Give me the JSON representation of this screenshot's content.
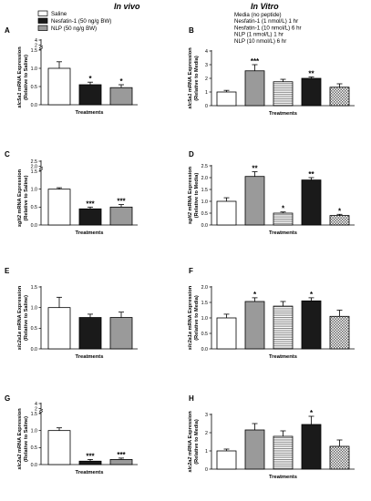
{
  "headers": {
    "left": "In vivo",
    "right": "In Vitro"
  },
  "legend_left": [
    "Saline",
    "Nesfatin-1 (50 ng/g BW)",
    "NLP (50 ng/g BW)"
  ],
  "legend_right": [
    "Media (no peptide)",
    "Nesfatin-1 (1 nmol/L) 1 hr",
    "Nesfatin-1 (10 nmol/L) 6 hr",
    "NLP (1 nmol/L) 1 hr",
    "NLP (10 nmol/L) 6 hr"
  ],
  "chart_data": [
    {
      "id": "A",
      "type": "bar",
      "gene": "slc5a1",
      "ylabel_suffix": " mRNA Expression",
      "ylabel2": "(Relative to Saline)",
      "xlabel": "Treatments",
      "ylim": [
        0,
        1.5
      ],
      "yticks": [
        "0.0",
        "0.5",
        "1.0",
        "1.5"
      ],
      "break_labels": [
        "4",
        "2"
      ],
      "values": [
        1.0,
        0.55,
        0.47
      ],
      "errors": [
        0.18,
        0.07,
        0.08
      ],
      "stars": [
        "",
        "*",
        "*"
      ],
      "fills": [
        "white",
        "black",
        "gray"
      ]
    },
    {
      "id": "B",
      "type": "bar",
      "gene": "slc5a1",
      "ylabel_suffix": " mRNA Expression",
      "ylabel2": "(Relative to Media)",
      "xlabel": "Treatments",
      "ylim": [
        0,
        4
      ],
      "yticks": [
        "0",
        "1",
        "2",
        "3",
        "4"
      ],
      "values": [
        1.0,
        2.55,
        1.75,
        2.0,
        1.35
      ],
      "errors": [
        0.12,
        0.45,
        0.18,
        0.1,
        0.25
      ],
      "stars": [
        "",
        "***",
        "",
        "**",
        ""
      ],
      "fills": [
        "white",
        "gray",
        "hstripe",
        "black",
        "checker"
      ]
    },
    {
      "id": "C",
      "type": "bar",
      "gene": "sglt2",
      "ylabel_suffix": " mRNA Expression",
      "ylabel2": "(Relative to Saline)",
      "xlabel": "Treatments",
      "ylim": [
        0,
        1.5
      ],
      "yticks": [
        "0.0",
        "0.5",
        "1.0",
        "1.5"
      ],
      "break_labels": [
        "2.5",
        "2.0"
      ],
      "values": [
        1.0,
        0.45,
        0.5
      ],
      "errors": [
        0.04,
        0.05,
        0.07
      ],
      "stars": [
        "",
        "***",
        "***"
      ],
      "fills": [
        "white",
        "black",
        "gray"
      ]
    },
    {
      "id": "D",
      "type": "bar",
      "gene": "sglt2",
      "ylabel_suffix": " mRNA Expression",
      "ylabel2": "(Relative to Media)",
      "xlabel": "Treatments",
      "ylim": [
        0,
        2.5
      ],
      "yticks": [
        "0.0",
        "0.5",
        "1.0",
        "1.5",
        "2.0",
        "2.5"
      ],
      "values": [
        1.0,
        2.05,
        0.5,
        1.9,
        0.4
      ],
      "errors": [
        0.15,
        0.2,
        0.05,
        0.1,
        0.05
      ],
      "stars": [
        "",
        "**",
        "*",
        "**",
        "*"
      ],
      "fills": [
        "white",
        "gray",
        "hstripe",
        "black",
        "checker"
      ]
    },
    {
      "id": "E",
      "type": "bar",
      "gene": "slc2a1a",
      "ylabel_suffix": " mRNA Expression",
      "ylabel2": "(Relative to Saline)",
      "xlabel": "Treatments",
      "ylim": [
        0,
        1.5
      ],
      "yticks": [
        "0.0",
        "0.5",
        "1.0",
        "1.5"
      ],
      "values": [
        1.0,
        0.76,
        0.76
      ],
      "errors": [
        0.25,
        0.08,
        0.13
      ],
      "stars": [
        "",
        "",
        ""
      ],
      "fills": [
        "white",
        "black",
        "gray"
      ]
    },
    {
      "id": "F",
      "type": "bar",
      "gene": "slc2a1a",
      "ylabel_suffix": " mRNA Expression",
      "ylabel2": "(Relative to Media)",
      "xlabel": "Treatments",
      "ylim": [
        0,
        2.0
      ],
      "yticks": [
        "0.0",
        "0.5",
        "1.0",
        "1.5",
        "2.0"
      ],
      "values": [
        1.0,
        1.53,
        1.38,
        1.55,
        1.05
      ],
      "errors": [
        0.12,
        0.12,
        0.15,
        0.1,
        0.2
      ],
      "stars": [
        "",
        "*",
        "",
        "*",
        ""
      ],
      "fills": [
        "white",
        "gray",
        "hstripe",
        "black",
        "checker"
      ]
    },
    {
      "id": "G",
      "type": "bar",
      "gene": "slc2a2",
      "ylabel_suffix": " mRNA Expression",
      "ylabel2": "(Relative to Saline)",
      "xlabel": "Treatments",
      "ylim": [
        0,
        1.5
      ],
      "yticks": [
        "0.0",
        "0.5",
        "1.0",
        "1.5"
      ],
      "break_labels": [
        "4",
        "2"
      ],
      "values": [
        1.0,
        0.1,
        0.15
      ],
      "errors": [
        0.08,
        0.05,
        0.04
      ],
      "stars": [
        "",
        "***",
        "***"
      ],
      "fills": [
        "white",
        "black",
        "gray"
      ]
    },
    {
      "id": "H",
      "type": "bar",
      "gene": "slc2a2",
      "ylabel_suffix": " mRNA Expression",
      "ylabel2": "(Relative to Media)",
      "xlabel": "Treatments",
      "ylim": [
        0,
        3
      ],
      "yticks": [
        "0",
        "1",
        "2",
        "3"
      ],
      "values": [
        1.0,
        2.15,
        1.8,
        2.45,
        1.25
      ],
      "errors": [
        0.1,
        0.35,
        0.3,
        0.45,
        0.35
      ],
      "stars": [
        "",
        "",
        "",
        "*",
        ""
      ],
      "fills": [
        "white",
        "gray",
        "hstripe",
        "black",
        "checker"
      ]
    }
  ]
}
